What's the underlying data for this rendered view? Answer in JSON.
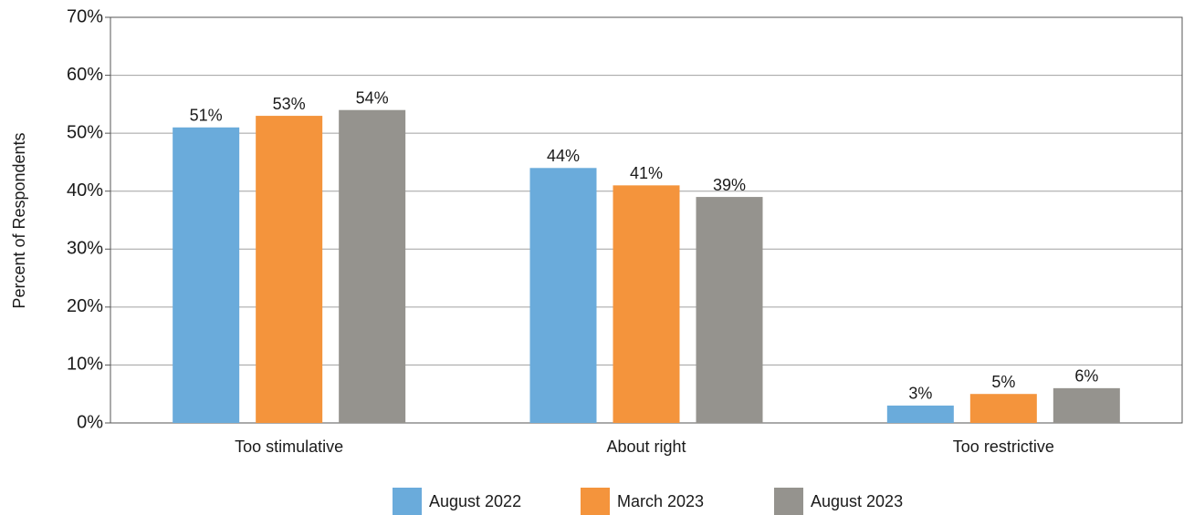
{
  "chart_data": {
    "type": "bar",
    "y_label": "Percent of Respondents",
    "categories": [
      "Too stimulative",
      "About right",
      "Too restrictive"
    ],
    "series": [
      {
        "name": "August 2022",
        "color": "#6aabdb",
        "values": [
          51,
          44,
          3
        ],
        "value_labels": [
          "51%",
          "44%",
          "3%"
        ]
      },
      {
        "name": "March 2023",
        "color": "#f4943c",
        "values": [
          53,
          41,
          5
        ],
        "value_labels": [
          "53%",
          "41%",
          "5%"
        ]
      },
      {
        "name": "August 2023",
        "color": "#95938e",
        "values": [
          54,
          39,
          6
        ],
        "value_labels": [
          "54%",
          "39%",
          "6%"
        ]
      }
    ],
    "ylim": [
      0,
      70
    ],
    "yticks": [
      {
        "value": 0,
        "label": "0%"
      },
      {
        "value": 10,
        "label": "10%"
      },
      {
        "value": 20,
        "label": "20%"
      },
      {
        "value": 30,
        "label": "30%"
      },
      {
        "value": 40,
        "label": "40%"
      },
      {
        "value": 50,
        "label": "50%"
      },
      {
        "value": 60,
        "label": "60%"
      },
      {
        "value": 70,
        "label": "70%"
      }
    ],
    "grid": true,
    "legend": "bottom"
  }
}
